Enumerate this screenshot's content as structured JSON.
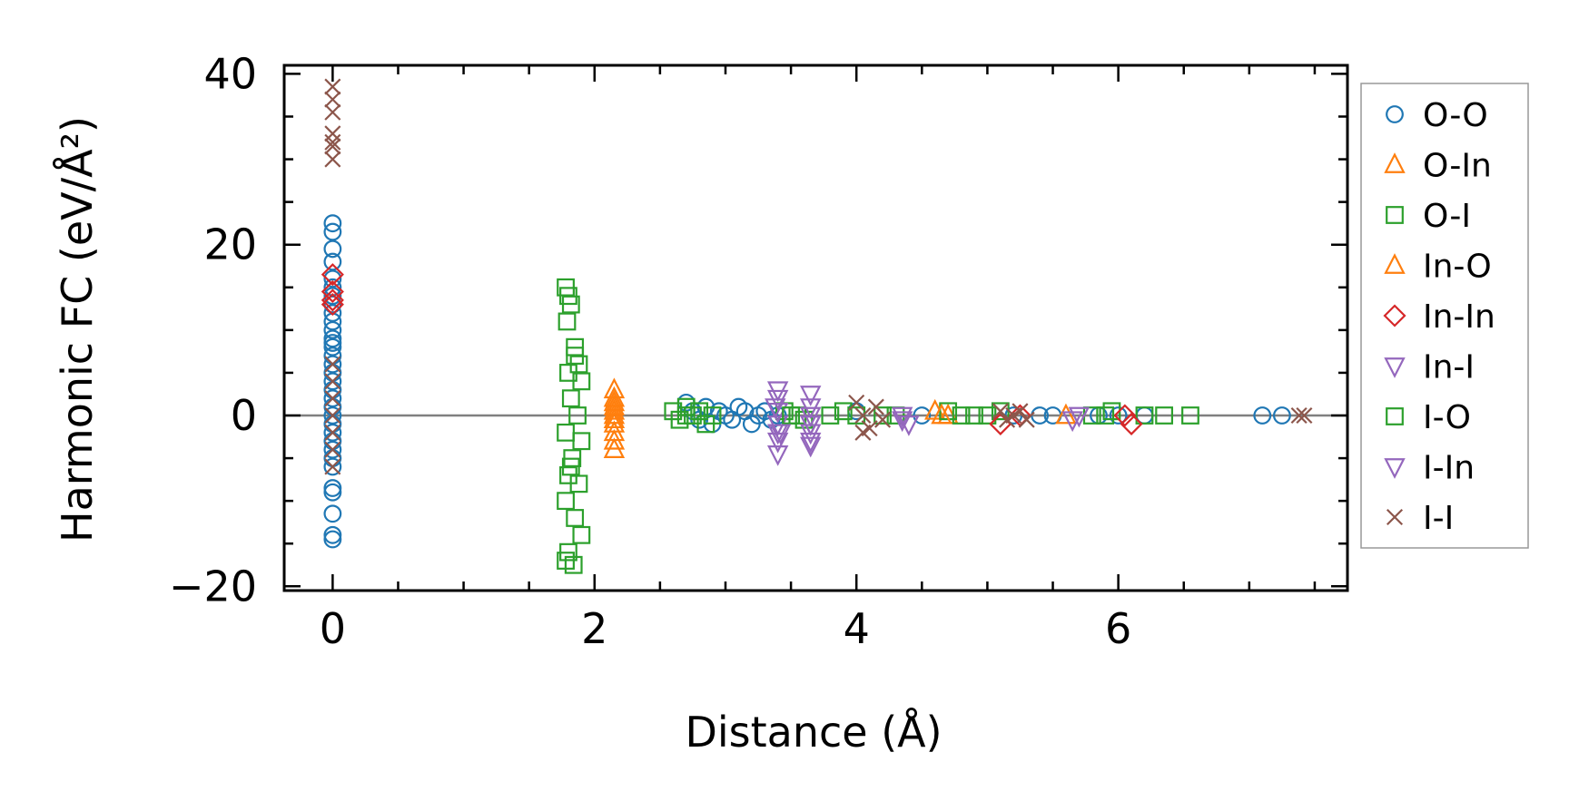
{
  "chart_data": {
    "type": "scatter",
    "xlabel": "Distance (Å)",
    "ylabel": "Harmonic FC (eV/Å²)",
    "xlim": [
      -0.37,
      7.75
    ],
    "ylim": [
      -20.5,
      41
    ],
    "xticks": [
      0,
      2,
      4,
      6
    ],
    "xtick_labels": [
      "0",
      "2",
      "4",
      "6"
    ],
    "yticks": [
      -20,
      0,
      20,
      40
    ],
    "ytick_labels": [
      "−20",
      "0",
      "20",
      "40"
    ],
    "zero_line": true,
    "grid": false,
    "legend_position": "outside-right",
    "series": [
      {
        "name": "O-O",
        "marker": "circle",
        "color": "#1f77b4",
        "points": [
          [
            0,
            22.5
          ],
          [
            0,
            21.5
          ],
          [
            0,
            19.5
          ],
          [
            0,
            18
          ],
          [
            0,
            16
          ],
          [
            0,
            15
          ],
          [
            0,
            14
          ],
          [
            0,
            13
          ],
          [
            0,
            12
          ],
          [
            0,
            11
          ],
          [
            0,
            10
          ],
          [
            0,
            9
          ],
          [
            0,
            8.5
          ],
          [
            0,
            8
          ],
          [
            0,
            7
          ],
          [
            0,
            6
          ],
          [
            0,
            5
          ],
          [
            0,
            4
          ],
          [
            0,
            3
          ],
          [
            0,
            2
          ],
          [
            0,
            1
          ],
          [
            0,
            0
          ],
          [
            0,
            -1
          ],
          [
            0,
            -2
          ],
          [
            0,
            -3
          ],
          [
            0,
            -4
          ],
          [
            0,
            -5
          ],
          [
            0,
            -6
          ],
          [
            0,
            -8.5
          ],
          [
            0,
            -9
          ],
          [
            0,
            -11.5
          ],
          [
            0,
            -14
          ],
          [
            0,
            -14.5
          ],
          [
            2.7,
            1.5
          ],
          [
            2.75,
            0.5
          ],
          [
            2.8,
            -0.5
          ],
          [
            2.85,
            1
          ],
          [
            2.9,
            -1
          ],
          [
            2.95,
            0.5
          ],
          [
            3.0,
            0
          ],
          [
            3.05,
            -0.5
          ],
          [
            3.1,
            1
          ],
          [
            3.15,
            0.5
          ],
          [
            3.2,
            -1
          ],
          [
            3.25,
            0
          ],
          [
            3.3,
            0.5
          ],
          [
            3.35,
            -0.5
          ],
          [
            3.4,
            0
          ],
          [
            4.0,
            0.5
          ],
          [
            4.5,
            0
          ],
          [
            5.2,
            0
          ],
          [
            5.4,
            0
          ],
          [
            5.5,
            0
          ],
          [
            5.85,
            0
          ],
          [
            6.0,
            0
          ],
          [
            6.2,
            0
          ],
          [
            7.1,
            0
          ],
          [
            7.25,
            0
          ]
        ]
      },
      {
        "name": "O-In",
        "marker": "triangle-up",
        "color": "#ff7f0e",
        "points": [
          [
            2.15,
            3
          ],
          [
            2.15,
            2
          ],
          [
            2.15,
            1
          ],
          [
            2.15,
            0.5
          ],
          [
            2.15,
            0
          ],
          [
            2.15,
            -1
          ],
          [
            2.15,
            -2
          ],
          [
            2.15,
            -3
          ],
          [
            2.15,
            -4
          ],
          [
            4.6,
            0.5
          ],
          [
            4.7,
            0
          ],
          [
            5.6,
            0
          ]
        ]
      },
      {
        "name": "O-I",
        "marker": "square",
        "color": "#2ca02c",
        "points": [
          [
            1.78,
            15
          ],
          [
            1.8,
            14
          ],
          [
            1.82,
            13
          ],
          [
            1.79,
            11
          ],
          [
            1.85,
            8
          ],
          [
            1.88,
            6
          ],
          [
            1.8,
            5
          ],
          [
            1.9,
            4
          ],
          [
            1.82,
            2
          ],
          [
            1.87,
            0
          ],
          [
            1.78,
            -2
          ],
          [
            1.9,
            -3
          ],
          [
            1.83,
            -5
          ],
          [
            1.8,
            -7
          ],
          [
            1.88,
            -8
          ],
          [
            1.78,
            -10
          ],
          [
            1.85,
            -12
          ],
          [
            1.9,
            -14
          ],
          [
            1.8,
            -16
          ],
          [
            1.84,
            -17.5
          ],
          [
            1.78,
            -17
          ],
          [
            2.6,
            0.5
          ],
          [
            2.65,
            -0.5
          ],
          [
            2.7,
            1
          ],
          [
            2.75,
            0
          ],
          [
            2.8,
            0.5
          ],
          [
            2.85,
            -1
          ],
          [
            2.9,
            0
          ],
          [
            3.45,
            0.5
          ],
          [
            3.55,
            0
          ],
          [
            3.6,
            -0.5
          ],
          [
            3.8,
            0
          ],
          [
            3.9,
            0.5
          ],
          [
            4.2,
            0
          ],
          [
            4.3,
            0
          ],
          [
            4.7,
            0.5
          ],
          [
            4.9,
            0
          ],
          [
            5.0,
            0
          ],
          [
            5.1,
            0.5
          ],
          [
            5.8,
            0
          ],
          [
            5.95,
            0.5
          ],
          [
            6.2,
            0
          ],
          [
            6.35,
            0
          ],
          [
            6.55,
            0
          ]
        ]
      },
      {
        "name": "In-O",
        "marker": "triangle-up",
        "color": "#ff7f0e",
        "points": [
          [
            2.15,
            1.5
          ],
          [
            2.15,
            -0.5
          ],
          [
            4.65,
            0
          ]
        ]
      },
      {
        "name": "In-In",
        "marker": "diamond",
        "color": "#d62728",
        "points": [
          [
            0,
            16.5
          ],
          [
            0,
            14.5
          ],
          [
            0,
            13.5
          ],
          [
            0,
            13
          ],
          [
            5.1,
            -1
          ],
          [
            5.25,
            0
          ],
          [
            6.05,
            0
          ],
          [
            6.1,
            -1
          ]
        ]
      },
      {
        "name": "In-I",
        "marker": "triangle-down",
        "color": "#9467bd",
        "points": [
          [
            3.4,
            3
          ],
          [
            3.4,
            2
          ],
          [
            3.4,
            0.5
          ],
          [
            3.4,
            -1
          ],
          [
            3.4,
            -2
          ],
          [
            3.4,
            -3
          ],
          [
            3.4,
            -4.5
          ],
          [
            3.65,
            2.5
          ],
          [
            3.65,
            1
          ],
          [
            3.65,
            0
          ],
          [
            3.65,
            -1
          ],
          [
            3.65,
            -2
          ],
          [
            3.65,
            -3
          ],
          [
            3.65,
            -3.5
          ],
          [
            4.35,
            0
          ],
          [
            4.4,
            -1
          ],
          [
            5.7,
            0
          ],
          [
            5.65,
            -0.5
          ]
        ]
      },
      {
        "name": "I-O",
        "marker": "square",
        "color": "#2ca02c",
        "points": [
          [
            1.85,
            7
          ],
          [
            1.82,
            -6
          ],
          [
            2.7,
            0
          ],
          [
            3.5,
            0
          ],
          [
            4.0,
            0
          ],
          [
            4.8,
            0
          ],
          [
            5.9,
            0
          ]
        ]
      },
      {
        "name": "I-In",
        "marker": "triangle-down",
        "color": "#9467bd",
        "points": [
          [
            3.38,
            1
          ],
          [
            3.42,
            -2
          ],
          [
            3.65,
            -1
          ],
          [
            4.35,
            -0.5
          ]
        ]
      },
      {
        "name": "I-I",
        "marker": "x",
        "color": "#8c564b",
        "points": [
          [
            0,
            38.5
          ],
          [
            0,
            37
          ],
          [
            0,
            35.5
          ],
          [
            0,
            33
          ],
          [
            0,
            32
          ],
          [
            0,
            31.5
          ],
          [
            0,
            30
          ],
          [
            0,
            6
          ],
          [
            0,
            4
          ],
          [
            0,
            2
          ],
          [
            0,
            0
          ],
          [
            0,
            -2
          ],
          [
            0,
            -4
          ],
          [
            0,
            -6
          ],
          [
            4.0,
            1.5
          ],
          [
            4.05,
            0
          ],
          [
            4.1,
            -1.5
          ],
          [
            4.15,
            1
          ],
          [
            4.2,
            -0.5
          ],
          [
            4.05,
            -2
          ],
          [
            5.1,
            0.5
          ],
          [
            5.15,
            -0.5
          ],
          [
            5.2,
            0
          ],
          [
            5.25,
            0.5
          ],
          [
            5.3,
            -0.5
          ],
          [
            7.38,
            0
          ],
          [
            7.42,
            0
          ]
        ]
      }
    ]
  }
}
